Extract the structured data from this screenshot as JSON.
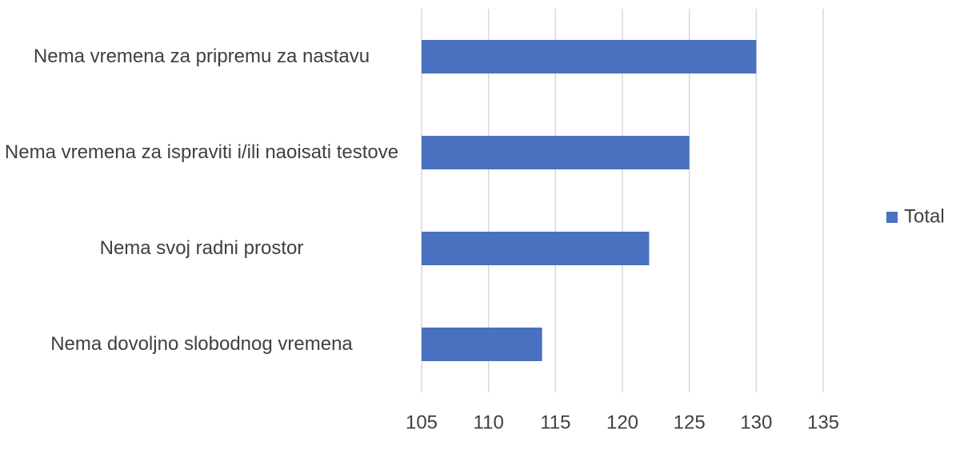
{
  "chart_data": {
    "type": "bar",
    "orientation": "horizontal",
    "categories": [
      "Nema vremena za pripremu za nastavu",
      "Nema vremena za ispraviti i/ili naoisati testove",
      "Nema svoj radni prostor",
      "Nema dovoljno slobodnog vremena"
    ],
    "series": [
      {
        "name": "Total",
        "color": "#4a70c0",
        "values": [
          130,
          125,
          122,
          114
        ]
      }
    ],
    "xlim": [
      105,
      135
    ],
    "xticks": [
      105,
      110,
      115,
      120,
      125,
      130,
      135
    ],
    "grid": true,
    "legend": "right"
  }
}
